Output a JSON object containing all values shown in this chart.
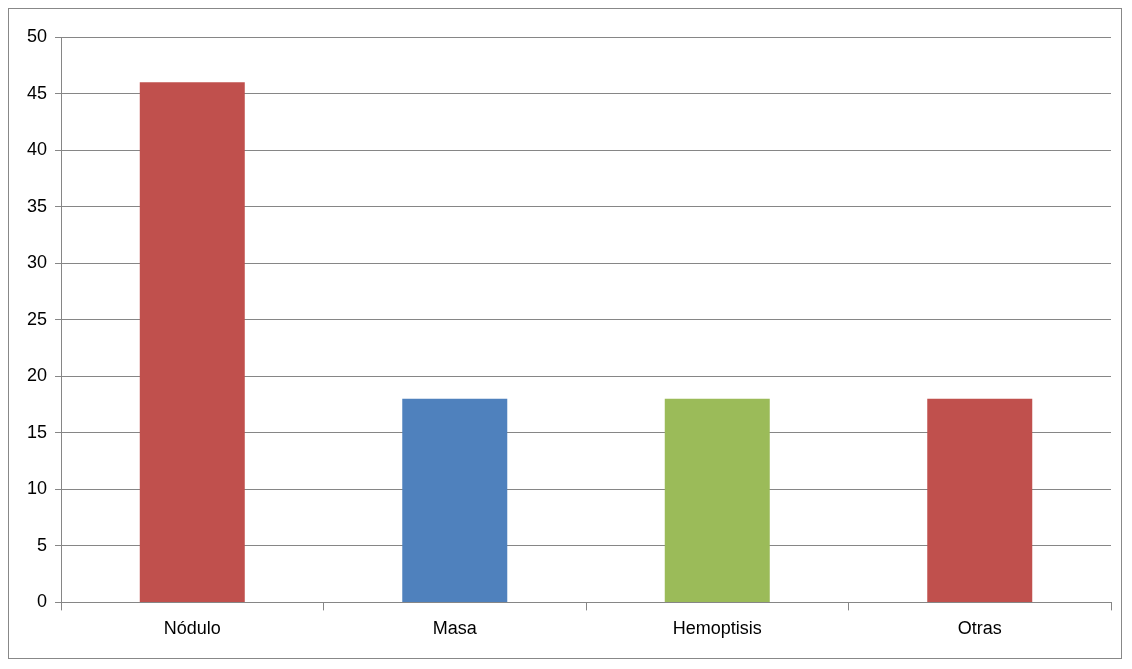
{
  "chart_data": {
    "type": "bar",
    "categories": [
      "Nódulo",
      "Masa",
      "Hemoptisis",
      "Otras"
    ],
    "values": [
      46,
      18,
      18,
      18
    ],
    "colors": [
      "#c0504d",
      "#4f81bd",
      "#9bbb59",
      "#c0504d"
    ],
    "ylim": [
      0,
      50
    ],
    "yticks": [
      0,
      5,
      10,
      15,
      20,
      25,
      30,
      35,
      40,
      45,
      50
    ],
    "grid": "y"
  }
}
